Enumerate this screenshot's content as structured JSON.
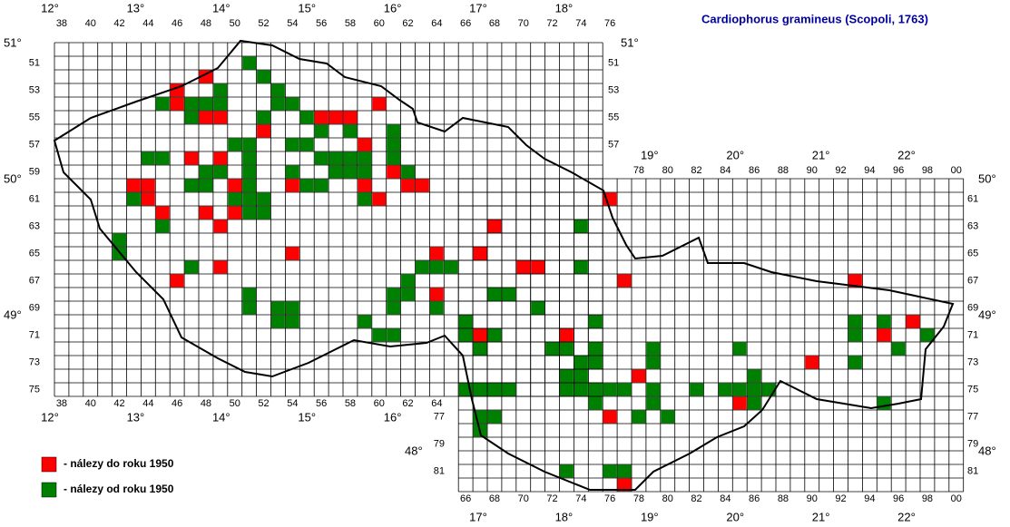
{
  "map": {
    "title": "Cardiophorus gramineus (Scopoli, 1763)",
    "legend": [
      {
        "label": "- nálezy do roku 1950",
        "color": "#ff0000"
      },
      {
        "label": "- nálezy od roku 1950",
        "color": "#008000"
      }
    ],
    "col_labels_top_cz": [
      "38",
      "40",
      "42",
      "44",
      "46",
      "48",
      "50",
      "52",
      "54",
      "56",
      "58",
      "60",
      "62",
      "64",
      "66",
      "68",
      "70",
      "72",
      "74",
      "76"
    ],
    "col_labels_bottom_cz": [
      "38",
      "40",
      "42",
      "44",
      "46",
      "48",
      "50",
      "52",
      "54",
      "56",
      "58",
      "60",
      "62",
      "64"
    ],
    "col_labels_top_sk": [
      "78",
      "80",
      "82",
      "84",
      "86",
      "88",
      "90",
      "92",
      "94",
      "96",
      "98",
      "00"
    ],
    "col_labels_bottom_sk": [
      "66",
      "68",
      "70",
      "72",
      "74",
      "76",
      "78",
      "80",
      "82",
      "84",
      "86",
      "88",
      "90",
      "92",
      "94",
      "96",
      "98",
      "00"
    ],
    "row_labels_left_cz": [
      "51",
      "53",
      "55",
      "57",
      "59",
      "61",
      "63",
      "65",
      "67",
      "69",
      "71",
      "73",
      "75"
    ],
    "row_labels_right_cz": [
      "51",
      "53",
      "55",
      "57"
    ],
    "row_labels_right_sk": [
      "61",
      "63",
      "65",
      "67",
      "69",
      "71",
      "73",
      "75",
      "77",
      "79",
      "81"
    ],
    "row_labels_left_sk": [
      "77",
      "79",
      "81"
    ],
    "lon_top_cz": [
      "12°",
      "13°",
      "14°",
      "15°",
      "16°",
      "17°",
      "18°"
    ],
    "lon_bottom_cz": [
      "12°",
      "13°",
      "14°",
      "15°",
      "16°"
    ],
    "lon_top_sk": [
      "19°",
      "20°",
      "21°",
      "22°"
    ],
    "lon_bottom_sk": [
      "17°",
      "18°",
      "19°",
      "20°",
      "21°",
      "22°"
    ],
    "lat_left": [
      "51°",
      "50°",
      "49°"
    ],
    "lat_right_cz": [
      "51°"
    ],
    "lat_right_sk": [
      "50°",
      "49°",
      "48°"
    ],
    "lat_left_sk": [
      "48°"
    ],
    "red_cells": [
      [
        46,
        53
      ],
      [
        46,
        54
      ],
      [
        48,
        52
      ],
      [
        48,
        55
      ],
      [
        49,
        55
      ],
      [
        52,
        56
      ],
      [
        56,
        55
      ],
      [
        57,
        55
      ],
      [
        58,
        55
      ],
      [
        60,
        54
      ],
      [
        59,
        57
      ],
      [
        47,
        58
      ],
      [
        49,
        58
      ],
      [
        43,
        60
      ],
      [
        44,
        60
      ],
      [
        44,
        61
      ],
      [
        50,
        60
      ],
      [
        51,
        60
      ],
      [
        54,
        60
      ],
      [
        59,
        60
      ],
      [
        60,
        61
      ],
      [
        61,
        59
      ],
      [
        62,
        60
      ],
      [
        63,
        60
      ],
      [
        45,
        62
      ],
      [
        48,
        62
      ],
      [
        49,
        63
      ],
      [
        50,
        62
      ],
      [
        54,
        65
      ],
      [
        49,
        66
      ],
      [
        46,
        67
      ],
      [
        64,
        65
      ],
      [
        64,
        68
      ],
      [
        67,
        65
      ],
      [
        68,
        63
      ],
      [
        70,
        66
      ],
      [
        71,
        66
      ],
      [
        76,
        61
      ],
      [
        77,
        67
      ],
      [
        67,
        71
      ],
      [
        73,
        71
      ],
      [
        78,
        74
      ],
      [
        76,
        77
      ],
      [
        77,
        82
      ],
      [
        85,
        76
      ],
      [
        90,
        73
      ],
      [
        93,
        67
      ],
      [
        97,
        70
      ],
      [
        95,
        71
      ]
    ],
    "green_cells": [
      [
        51,
        51
      ],
      [
        52,
        52
      ],
      [
        53,
        53
      ],
      [
        53,
        54
      ],
      [
        45,
        54
      ],
      [
        47,
        54
      ],
      [
        47,
        55
      ],
      [
        49,
        53
      ],
      [
        49,
        54
      ],
      [
        48,
        54
      ],
      [
        54,
        54
      ],
      [
        52,
        55
      ],
      [
        55,
        55
      ],
      [
        56,
        56
      ],
      [
        51,
        57
      ],
      [
        50,
        57
      ],
      [
        54,
        57
      ],
      [
        55,
        57
      ],
      [
        58,
        56
      ],
      [
        61,
        56
      ],
      [
        61,
        57
      ],
      [
        61,
        58
      ],
      [
        44,
        58
      ],
      [
        45,
        58
      ],
      [
        48,
        59
      ],
      [
        48,
        60
      ],
      [
        47,
        60
      ],
      [
        49,
        59
      ],
      [
        51,
        58
      ],
      [
        51,
        59
      ],
      [
        51,
        60
      ],
      [
        51,
        61
      ],
      [
        56,
        58
      ],
      [
        57,
        58
      ],
      [
        58,
        58
      ],
      [
        59,
        58
      ],
      [
        57,
        59
      ],
      [
        58,
        59
      ],
      [
        59,
        59
      ],
      [
        55,
        60
      ],
      [
        56,
        60
      ],
      [
        54,
        59
      ],
      [
        62,
        59
      ],
      [
        43,
        61
      ],
      [
        50,
        61
      ],
      [
        52,
        61
      ],
      [
        52,
        62
      ],
      [
        51,
        62
      ],
      [
        59,
        61
      ],
      [
        45,
        63
      ],
      [
        42,
        64
      ],
      [
        42,
        65
      ],
      [
        74,
        63
      ],
      [
        47,
        66
      ],
      [
        63,
        66
      ],
      [
        65,
        66
      ],
      [
        64,
        66
      ],
      [
        62,
        67
      ],
      [
        62,
        68
      ],
      [
        61,
        68
      ],
      [
        61,
        69
      ],
      [
        74,
        66
      ],
      [
        51,
        68
      ],
      [
        51,
        69
      ],
      [
        53,
        69
      ],
      [
        54,
        69
      ],
      [
        53,
        70
      ],
      [
        54,
        70
      ],
      [
        68,
        68
      ],
      [
        69,
        68
      ],
      [
        64,
        69
      ],
      [
        71,
        69
      ],
      [
        59,
        70
      ],
      [
        60,
        71
      ],
      [
        61,
        71
      ],
      [
        66,
        70
      ],
      [
        66,
        71
      ],
      [
        68,
        71
      ],
      [
        67,
        72
      ],
      [
        75,
        70
      ],
      [
        72,
        72
      ],
      [
        73,
        72
      ],
      [
        75,
        72
      ],
      [
        75,
        73
      ],
      [
        74,
        73
      ],
      [
        79,
        72
      ],
      [
        79,
        73
      ],
      [
        73,
        74
      ],
      [
        73,
        75
      ],
      [
        74,
        74
      ],
      [
        74,
        75
      ],
      [
        75,
        75
      ],
      [
        75,
        76
      ],
      [
        76,
        75
      ],
      [
        77,
        75
      ],
      [
        79,
        75
      ],
      [
        79,
        76
      ],
      [
        78,
        77
      ],
      [
        80,
        77
      ],
      [
        82,
        75
      ],
      [
        85,
        72
      ],
      [
        86,
        74
      ],
      [
        84,
        75
      ],
      [
        85,
        75
      ],
      [
        86,
        75
      ],
      [
        87,
        75
      ],
      [
        86,
        76
      ],
      [
        66,
        75
      ],
      [
        67,
        75
      ],
      [
        68,
        75
      ],
      [
        69,
        75
      ],
      [
        67,
        77
      ],
      [
        68,
        77
      ],
      [
        67,
        78
      ],
      [
        73,
        81
      ],
      [
        76,
        81
      ],
      [
        77,
        81
      ],
      [
        93,
        70
      ],
      [
        93,
        71
      ],
      [
        93,
        73
      ],
      [
        95,
        70
      ],
      [
        98,
        71
      ],
      [
        96,
        72
      ],
      [
        95,
        76
      ]
    ]
  }
}
